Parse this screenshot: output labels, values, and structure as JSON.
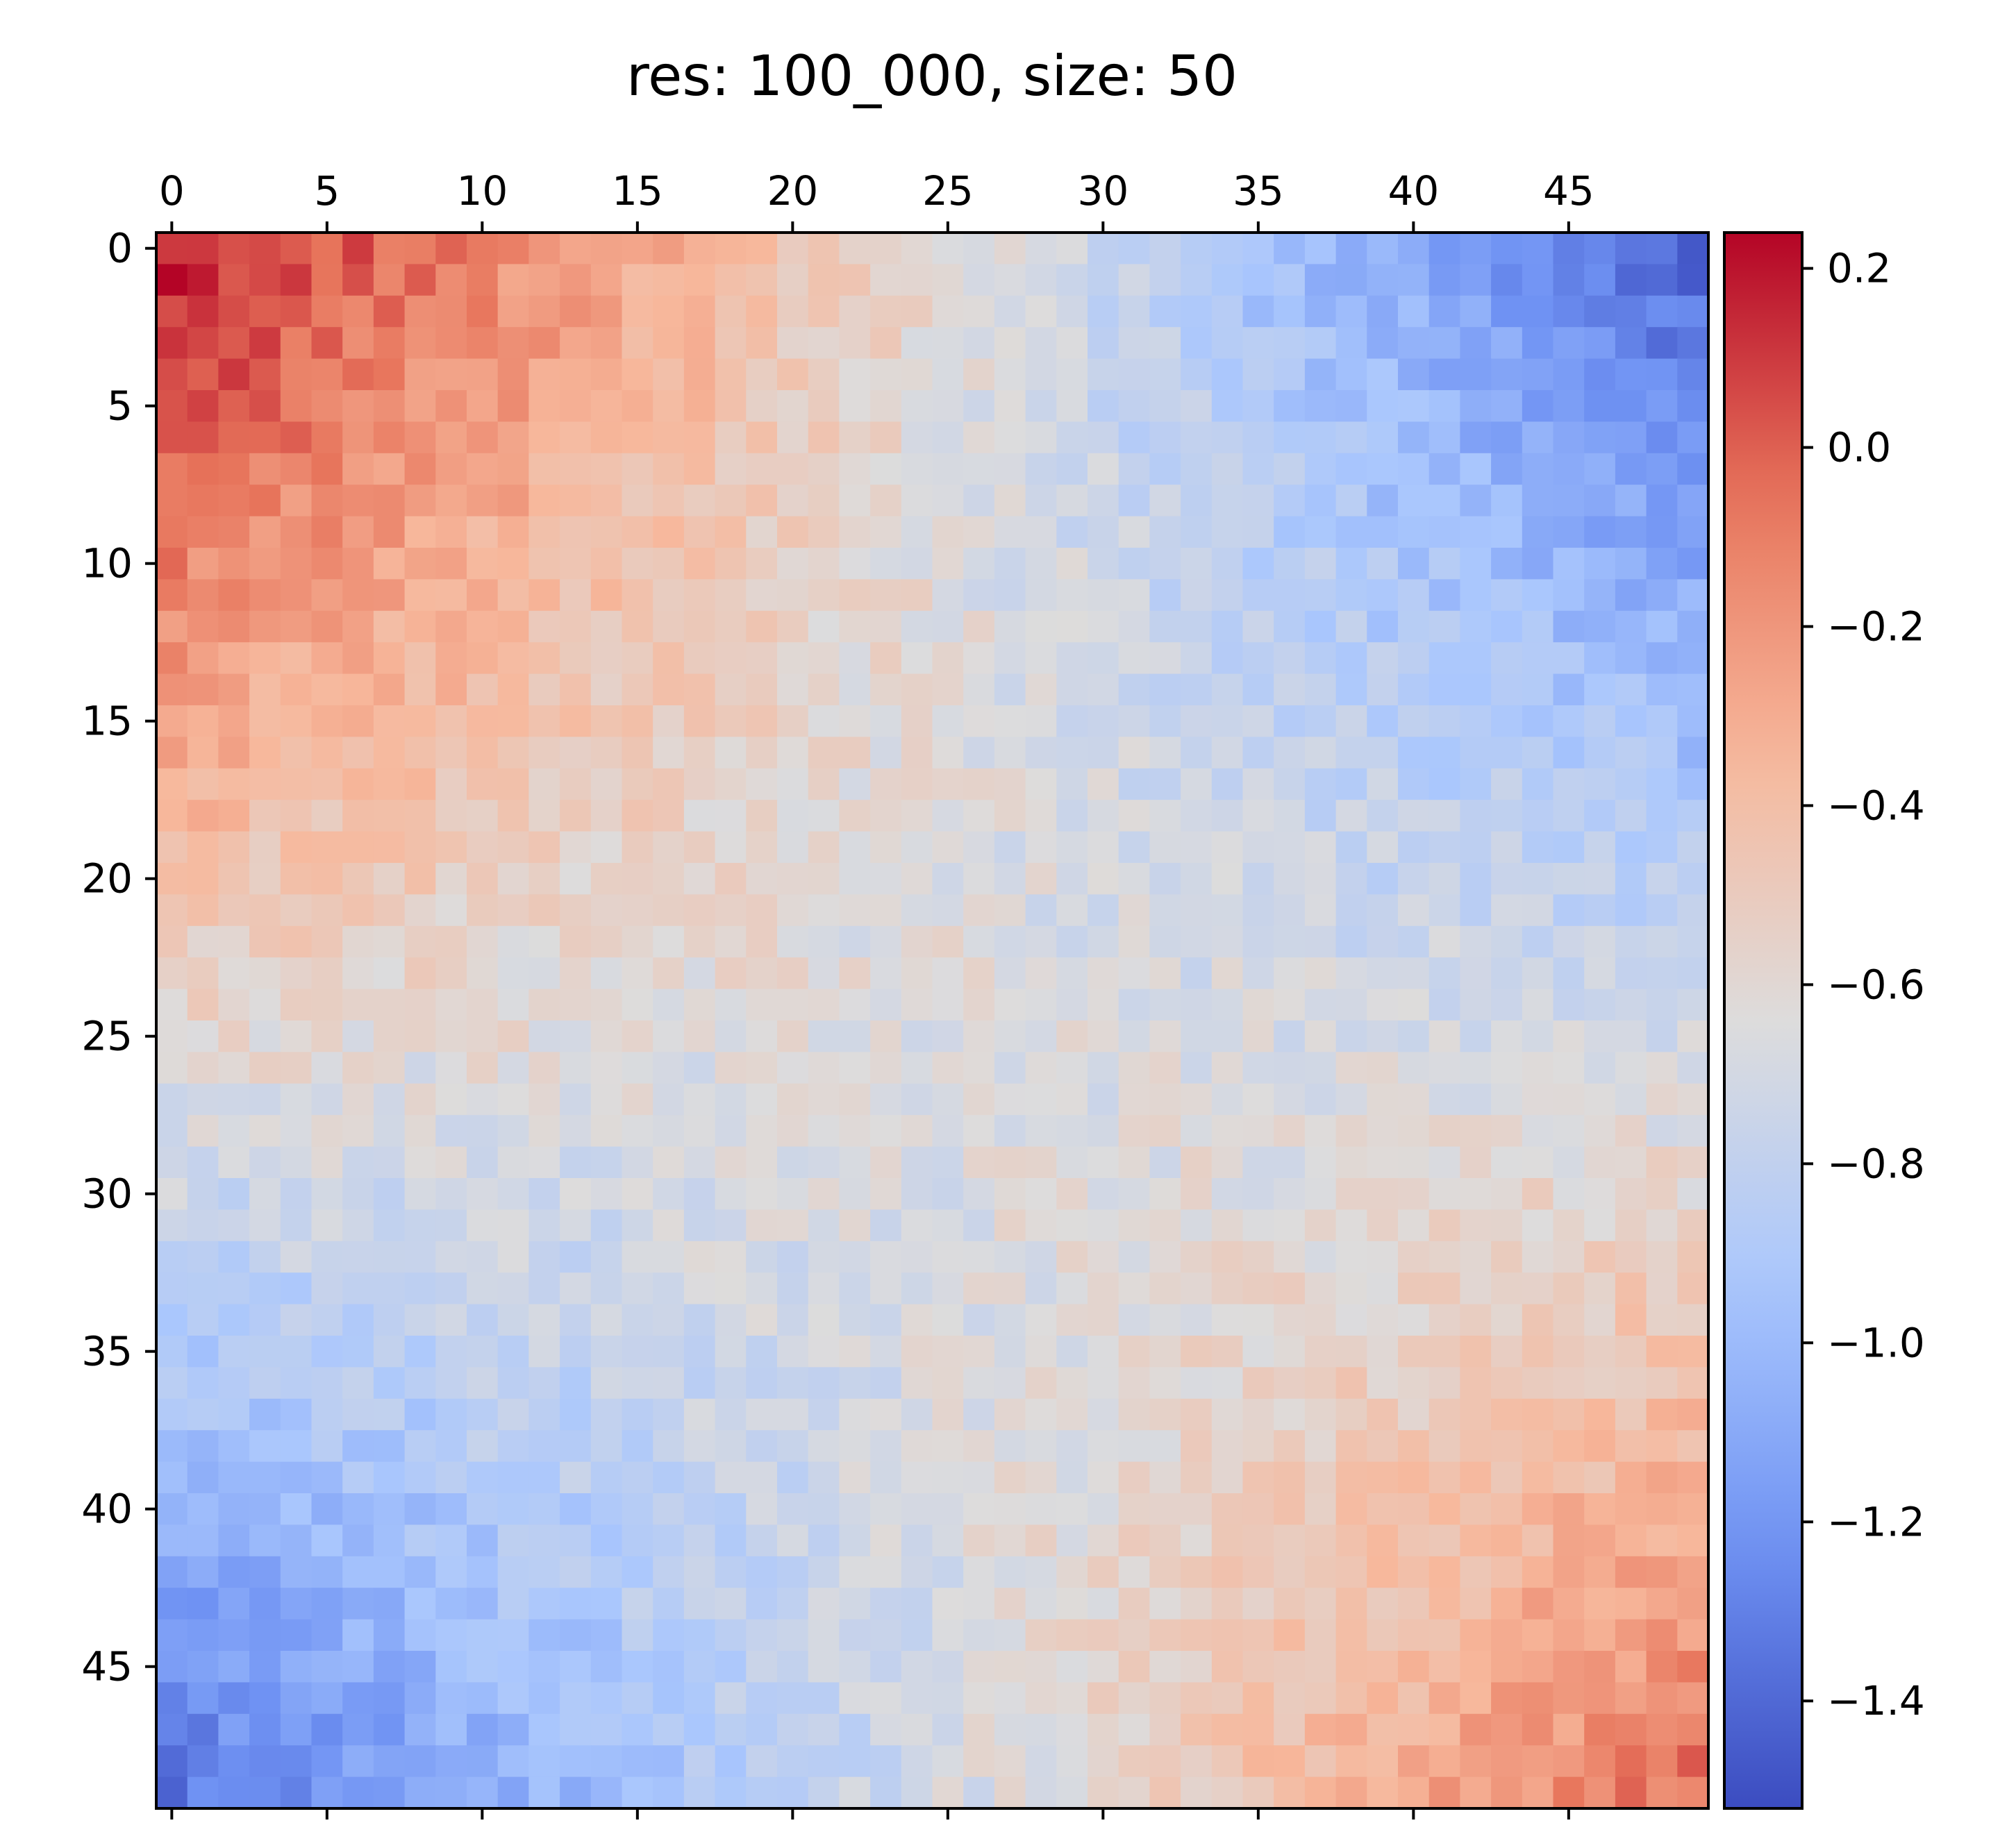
{
  "chart_data": {
    "type": "heatmap",
    "title": "res: 100_000, size: 50",
    "xlabel": "",
    "ylabel": "",
    "rows": 50,
    "cols": 50,
    "xlim": [
      -0.5,
      49.5
    ],
    "ylim": [
      49.5,
      -0.5
    ],
    "x_axis_position": "top",
    "x_ticks": [
      0,
      5,
      10,
      15,
      20,
      25,
      30,
      35,
      40,
      45
    ],
    "x_tick_labels": [
      "0",
      "5",
      "10",
      "15",
      "20",
      "25",
      "30",
      "35",
      "40",
      "45"
    ],
    "y_ticks": [
      0,
      5,
      10,
      15,
      20,
      25,
      30,
      35,
      40,
      45
    ],
    "y_tick_labels": [
      "0",
      "5",
      "10",
      "15",
      "20",
      "25",
      "30",
      "35",
      "40",
      "45"
    ],
    "colormap": "coolwarm",
    "colormap_stops": [
      "#3b4cc0",
      "#6f92f3",
      "#aac7fd",
      "#dddcdc",
      "#f7b89c",
      "#e7745b",
      "#b40426"
    ],
    "vmin": -1.52,
    "vmax": 0.24,
    "colorbar": {
      "position": "right",
      "ticks": [
        0.2,
        0.0,
        -0.2,
        -0.4,
        -0.6,
        -0.8,
        -1.0,
        -1.2,
        -1.4
      ],
      "tick_labels": [
        "0.2",
        "0.0",
        "−0.2",
        "−0.4",
        "−0.6",
        "−0.8",
        "−1.0",
        "−1.2",
        "−1.4"
      ]
    },
    "grid": false,
    "legend": "none"
  }
}
